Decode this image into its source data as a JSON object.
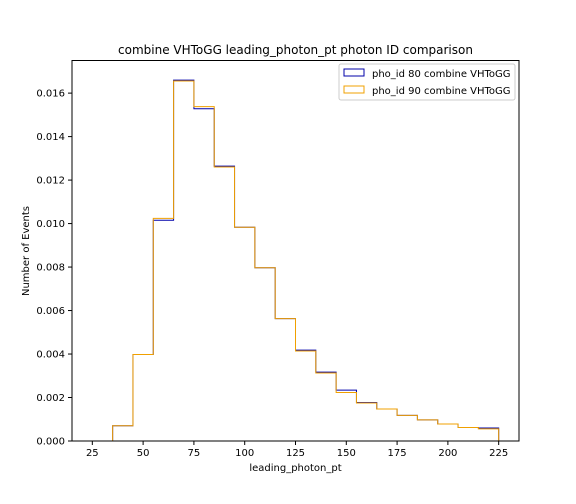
{
  "chart_data": {
    "type": "histogram",
    "title": "combine VHToGG leading_photon_pt photon ID comparison",
    "xlabel": "leading_photon_pt",
    "ylabel": "Number of Events",
    "xlim": [
      15,
      235
    ],
    "ylim": [
      0,
      0.0175
    ],
    "xticks": [
      25,
      50,
      75,
      100,
      125,
      150,
      175,
      200,
      225
    ],
    "yticks": [
      "0.000",
      "0.002",
      "0.004",
      "0.006",
      "0.008",
      "0.010",
      "0.012",
      "0.014",
      "0.016"
    ],
    "bin_edges": [
      35,
      45,
      55,
      65,
      75,
      85,
      95,
      105,
      115,
      125,
      135,
      145,
      155,
      165,
      175,
      185,
      195,
      205,
      215,
      225
    ],
    "series": [
      {
        "name": "pho_id 80 combine VHToGG",
        "color": "#0000aa",
        "values": [
          0.0007,
          0.00398,
          0.01015,
          0.0166,
          0.01528,
          0.01264,
          0.00983,
          0.00797,
          0.00563,
          0.00418,
          0.00317,
          0.00234,
          0.00177,
          0.00147,
          0.00118,
          0.00097,
          0.00078,
          0.00062,
          0.0006
        ]
      },
      {
        "name": "pho_id 90 combine VHToGG",
        "color": "#f0a000",
        "values": [
          0.0007,
          0.00398,
          0.01024,
          0.01656,
          0.01538,
          0.0126,
          0.00983,
          0.00797,
          0.00563,
          0.00414,
          0.00313,
          0.00223,
          0.00175,
          0.00147,
          0.00118,
          0.00097,
          0.00078,
          0.00062,
          0.00056
        ]
      }
    ],
    "legend_position": "top-right",
    "grid": false
  }
}
